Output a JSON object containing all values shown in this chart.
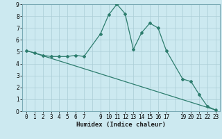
{
  "xlabel": "Humidex (Indice chaleur)",
  "ylabel": "",
  "bg_color": "#cce9f0",
  "grid_color": "#aacdd6",
  "line_color": "#2d7d6e",
  "xlim": [
    -0.5,
    23.5
  ],
  "ylim": [
    0,
    9
  ],
  "xticks": [
    0,
    1,
    2,
    3,
    4,
    5,
    6,
    7,
    9,
    10,
    11,
    12,
    13,
    14,
    15,
    16,
    17,
    19,
    20,
    21,
    22,
    23
  ],
  "xticklabels": [
    "0",
    "1",
    "2",
    "3",
    "4",
    "5",
    "6",
    "7",
    "9",
    "10",
    "11",
    "12",
    "13",
    "14",
    "15",
    "16",
    "17",
    "19",
    "20",
    "21",
    "22",
    "23"
  ],
  "yticks": [
    0,
    1,
    2,
    3,
    4,
    5,
    6,
    7,
    8,
    9
  ],
  "line1_x": [
    0,
    1,
    2,
    3,
    4,
    5,
    6,
    7,
    9,
    10,
    11,
    12,
    13,
    14,
    15,
    16,
    17,
    19,
    20,
    21,
    22,
    23
  ],
  "line1_y": [
    5.1,
    4.9,
    4.7,
    4.6,
    4.6,
    4.6,
    4.7,
    4.6,
    6.5,
    8.1,
    9.0,
    8.2,
    5.2,
    6.6,
    7.4,
    7.0,
    5.1,
    2.7,
    2.5,
    1.4,
    0.4,
    0.1
  ],
  "line2_x": [
    0,
    23
  ],
  "line2_y": [
    5.1,
    0.1
  ],
  "tick_fontsize": 5.5,
  "xlabel_fontsize": 6.5,
  "marker_size": 2.0,
  "linewidth": 0.9
}
